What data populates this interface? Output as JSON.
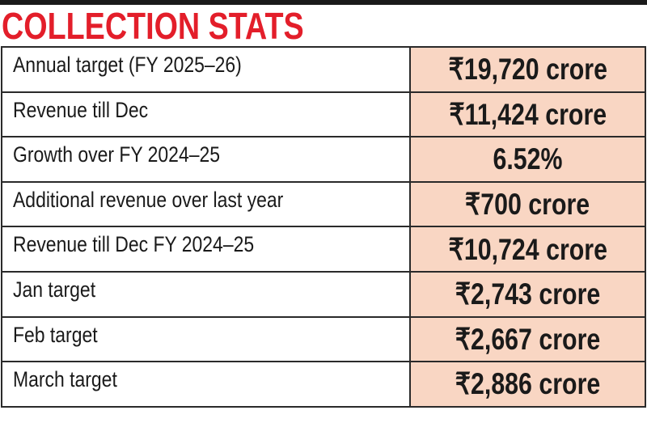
{
  "title": "COLLECTION STATS",
  "colors": {
    "title": "#e31e2a",
    "value_cell_bg": "#f9d6c3",
    "border": "#2a2a2a"
  },
  "rows": [
    {
      "label": "Annual target (FY 2025–26)",
      "value": "₹19,720 crore"
    },
    {
      "label": "Revenue till Dec",
      "value": "₹11,424 crore"
    },
    {
      "label": "Growth over FY 2024–25",
      "value": "6.52%"
    },
    {
      "label": "Additional revenue over last year",
      "value": "₹700 crore"
    },
    {
      "label": "Revenue till Dec FY 2024–25",
      "value": "₹10,724 crore"
    },
    {
      "label": "Jan target",
      "value": "₹2,743 crore"
    },
    {
      "label": "Feb target",
      "value": "₹2,667 crore"
    },
    {
      "label": "March target",
      "value": "₹2,886 crore"
    }
  ]
}
